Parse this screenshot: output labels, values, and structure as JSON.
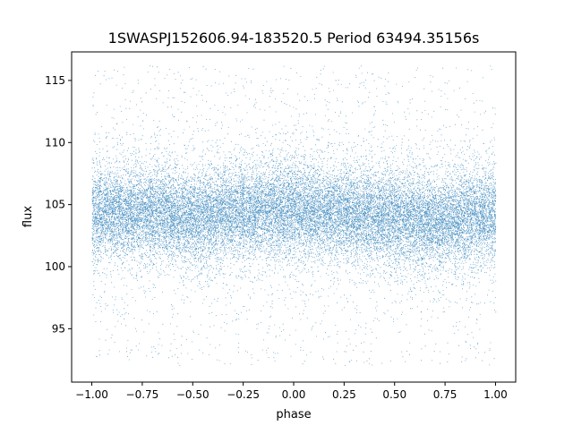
{
  "chart_data": {
    "type": "scatter",
    "title": "1SWASPJ152606.94-183520.5 Period 63494.35156s",
    "xlabel": "phase",
    "ylabel": "flux",
    "xlim": [
      -1.1,
      1.1
    ],
    "ylim": [
      90.7,
      117.3
    ],
    "x_ticks": [
      -1.0,
      -0.75,
      -0.5,
      -0.25,
      0.0,
      0.25,
      0.5,
      0.75,
      1.0
    ],
    "x_tick_labels": [
      "−1.00",
      "−0.75",
      "−0.50",
      "−0.25",
      "0.00",
      "0.25",
      "0.50",
      "0.75",
      "1.00"
    ],
    "y_ticks": [
      95,
      100,
      105,
      110,
      115
    ],
    "y_tick_labels": [
      "95",
      "100",
      "105",
      "110",
      "115"
    ],
    "grid": false,
    "legend": "none",
    "series": [
      {
        "color": "#1f77b4",
        "phase_range": [
          -1.0,
          1.0
        ],
        "flux_range": [
          92.0,
          116.2
        ],
        "mean_flux_profile": {
          "phase": [
            -1.0,
            -0.75,
            -0.5,
            -0.25,
            0.0,
            0.25,
            0.5,
            0.75,
            1.0
          ],
          "flux": [
            104.2,
            104.5,
            103.9,
            104.4,
            104.6,
            104.3,
            103.9,
            103.7,
            104.1
          ]
        },
        "core_scatter_sd": 1.7,
        "outlier_fraction": 0.06
      }
    ]
  }
}
